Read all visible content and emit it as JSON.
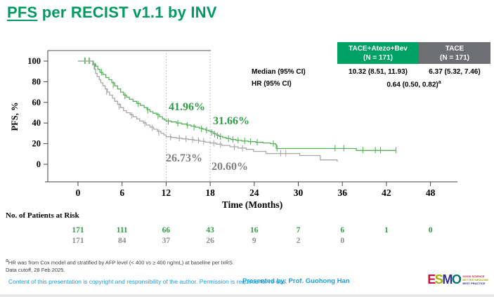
{
  "title": {
    "underlined": "PFS",
    "rest": " per RECIST v1.1 by INV"
  },
  "stats_table": {
    "columns": [
      {
        "name": "TACE+Atezo+Bev",
        "n": "(N = 171)"
      },
      {
        "name": "TACE",
        "n": "(N = 171)"
      }
    ],
    "rows": {
      "median_label": "Median (95% CI)",
      "median_atezo": "10.32 (8.51, 11.93)",
      "median_tace": "6.37 (5.32, 7.46)",
      "hr_label": "HR (95% CI)",
      "hr_value": "0.64 (0.50, 0.82)",
      "hr_sup": "a"
    }
  },
  "chart_data": {
    "type": "line",
    "subtype": "kaplan-meier",
    "xlabel": "Time (Months)",
    "ylabel": "PFS, %",
    "x_ticks": [
      0,
      6,
      12,
      18,
      24,
      30,
      36,
      42,
      48
    ],
    "y_ticks": [
      0,
      20,
      40,
      60,
      80,
      100
    ],
    "ylim": [
      0,
      100
    ],
    "reference_months": [
      12,
      18
    ],
    "series": [
      {
        "name": "TACE+Atezo+Bev",
        "color": "#55B259",
        "points": [
          [
            0,
            100
          ],
          [
            1.9,
            100
          ],
          [
            2.1,
            97
          ],
          [
            2.4,
            95
          ],
          [
            2.7,
            92
          ],
          [
            3.0,
            89
          ],
          [
            3.4,
            87
          ],
          [
            3.8,
            84
          ],
          [
            4.2,
            82
          ],
          [
            4.6,
            79
          ],
          [
            5.0,
            76
          ],
          [
            5.4,
            73
          ],
          [
            5.8,
            70
          ],
          [
            6.2,
            67
          ],
          [
            6.6,
            65
          ],
          [
            7.0,
            63
          ],
          [
            7.5,
            61
          ],
          [
            8.0,
            59
          ],
          [
            8.5,
            57
          ],
          [
            9.0,
            55
          ],
          [
            9.4,
            53
          ],
          [
            9.8,
            51
          ],
          [
            10.2,
            49.5
          ],
          [
            10.7,
            48
          ],
          [
            11.1,
            46
          ],
          [
            11.5,
            44
          ],
          [
            11.8,
            43
          ],
          [
            12.0,
            41.96
          ],
          [
            12.7,
            41
          ],
          [
            13.4,
            40
          ],
          [
            14.1,
            39
          ],
          [
            14.8,
            38
          ],
          [
            15.4,
            37
          ],
          [
            16.0,
            36
          ],
          [
            16.5,
            35
          ],
          [
            17.0,
            34
          ],
          [
            17.4,
            33
          ],
          [
            17.8,
            32.3
          ],
          [
            18.0,
            31.66
          ],
          [
            18.4,
            29.8
          ],
          [
            18.8,
            28.3
          ],
          [
            19.2,
            27
          ],
          [
            19.7,
            26
          ],
          [
            20.2,
            25
          ],
          [
            20.8,
            24
          ],
          [
            21.5,
            23.2
          ],
          [
            22.3,
            22.5
          ],
          [
            23.2,
            22
          ],
          [
            24.2,
            21.3
          ],
          [
            25.2,
            20.7
          ],
          [
            26.2,
            20
          ],
          [
            26.9,
            19.3
          ],
          [
            27.0,
            15.3
          ],
          [
            37.6,
            15.3
          ],
          [
            37.9,
            13.4
          ],
          [
            43.3,
            13.4
          ]
        ],
        "censors": [
          [
            0.9,
            100
          ],
          [
            1.5,
            100
          ],
          [
            2.3,
            95
          ],
          [
            3.2,
            89
          ],
          [
            4.8,
            77
          ],
          [
            6.4,
            66
          ],
          [
            8.2,
            58
          ],
          [
            9.5,
            52
          ],
          [
            10.9,
            46.5
          ],
          [
            12.3,
            41
          ],
          [
            13.6,
            39.5
          ],
          [
            14.9,
            37.5
          ],
          [
            15.8,
            35.5
          ],
          [
            16.8,
            34
          ],
          [
            17.5,
            32.8
          ],
          [
            18.2,
            30.5
          ],
          [
            18.6,
            28.8
          ],
          [
            19.0,
            27.4
          ],
          [
            19.4,
            26.4
          ],
          [
            20.5,
            24.5
          ],
          [
            21.1,
            23.6
          ],
          [
            21.8,
            23
          ],
          [
            22.7,
            22.3
          ],
          [
            23.5,
            21.8
          ],
          [
            24.4,
            21.1
          ],
          [
            26.6,
            19.8
          ],
          [
            27.1,
            15.3
          ],
          [
            35.0,
            15.3
          ],
          [
            36.2,
            15.3
          ],
          [
            38.8,
            13.4
          ],
          [
            40.5,
            13.4
          ],
          [
            41.2,
            13.4
          ],
          [
            43.3,
            13.4
          ]
        ]
      },
      {
        "name": "TACE",
        "color": "#A8A8A8",
        "points": [
          [
            0,
            100
          ],
          [
            1.8,
            100
          ],
          [
            2.0,
            96
          ],
          [
            2.2,
            92
          ],
          [
            2.4,
            88
          ],
          [
            2.6,
            85
          ],
          [
            2.9,
            82
          ],
          [
            3.1,
            79
          ],
          [
            3.4,
            76
          ],
          [
            3.7,
            73
          ],
          [
            4.0,
            70
          ],
          [
            4.3,
            67
          ],
          [
            4.7,
            64
          ],
          [
            5.0,
            61
          ],
          [
            5.4,
            58
          ],
          [
            5.8,
            55
          ],
          [
            6.2,
            52
          ],
          [
            6.6,
            50
          ],
          [
            7.1,
            48
          ],
          [
            7.5,
            46
          ],
          [
            8.0,
            44
          ],
          [
            8.4,
            42
          ],
          [
            8.9,
            40
          ],
          [
            9.3,
            38
          ],
          [
            9.8,
            36
          ],
          [
            10.3,
            34
          ],
          [
            10.8,
            32
          ],
          [
            11.3,
            30
          ],
          [
            11.7,
            28.5
          ],
          [
            12.0,
            26.73
          ],
          [
            12.7,
            26
          ],
          [
            13.4,
            25.3
          ],
          [
            14.2,
            24.6
          ],
          [
            15.0,
            24
          ],
          [
            15.8,
            23.2
          ],
          [
            16.6,
            22.4
          ],
          [
            17.3,
            21.5
          ],
          [
            18.0,
            20.6
          ],
          [
            18.8,
            19.5
          ],
          [
            19.6,
            18.3
          ],
          [
            20.7,
            17
          ],
          [
            21.8,
            15.8
          ],
          [
            22.9,
            14.5
          ],
          [
            23.9,
            12.5
          ],
          [
            25.6,
            10.5
          ],
          [
            30.2,
            8.5
          ],
          [
            33.0,
            4.2
          ],
          [
            35.2,
            4.2
          ],
          [
            35.3,
            2.5
          ]
        ],
        "censors": [
          [
            1.0,
            100
          ],
          [
            1.6,
            100
          ],
          [
            3.9,
            70
          ],
          [
            5.6,
            56
          ],
          [
            7.3,
            47
          ],
          [
            9.1,
            39
          ],
          [
            10.1,
            35
          ],
          [
            11.0,
            30.5
          ],
          [
            12.6,
            26
          ],
          [
            13.8,
            25
          ],
          [
            14.7,
            24.3
          ],
          [
            15.6,
            23.7
          ],
          [
            16.4,
            22.8
          ],
          [
            17.1,
            21.9
          ],
          [
            18.5,
            20
          ],
          [
            19.4,
            18.8
          ],
          [
            21.3,
            16.4
          ],
          [
            22.4,
            15.2
          ],
          [
            27.6,
            10.5
          ],
          [
            28.3,
            10.5
          ]
        ]
      }
    ],
    "annotations": [
      {
        "text": "41.96%",
        "series": "TACE+Atezo+Bev",
        "month": 12,
        "color": "#2E9E44"
      },
      {
        "text": "31.66%",
        "series": "TACE+Atezo+Bev",
        "month": 18,
        "color": "#2E9E44"
      },
      {
        "text": "26.73%",
        "series": "TACE",
        "month": 12,
        "color": "#7F7F7F"
      },
      {
        "text": "20.60%",
        "series": "TACE",
        "month": 18,
        "color": "#7F7F7F"
      }
    ]
  },
  "risk_table": {
    "label": "No. of Patients at Risk",
    "rows": [
      {
        "name": "TACE+Atezo+Bev",
        "color": "#2E9E44",
        "values": [
          "171",
          "111",
          "66",
          "43",
          "16",
          "7",
          "6",
          "1",
          "0"
        ]
      },
      {
        "name": "TACE",
        "color": "#8C8C8C",
        "values": [
          "171",
          "84",
          "37",
          "26",
          "9",
          "2",
          "0"
        ]
      }
    ]
  },
  "footer": {
    "note_sup": "a",
    "note1": "HR was from Cox model and stratified by AFP level (< 400 vs ≥ 400 ng/mL) at baseline per IxRS.",
    "note2": "Data cutoff, 28 Feb 2025.",
    "copyright": "Content of this presentation is copyright and responsibility of the author. Permission is required for re-use.",
    "presented": "Presented by: Prof. Guohong Han"
  },
  "logo": {
    "letters": {
      "e": "E",
      "s": "S",
      "m": "M",
      "o": "O"
    },
    "tagline": {
      "line1": "GOOD SCIENCE",
      "line2": "BETTER MEDICINE",
      "line3": "BEST PRACTICE"
    }
  },
  "colors": {
    "title_green": "#009B62",
    "header_green": "#00A164",
    "header_gray": "#6E6F72",
    "footer_blue": "#1E9BD7"
  }
}
